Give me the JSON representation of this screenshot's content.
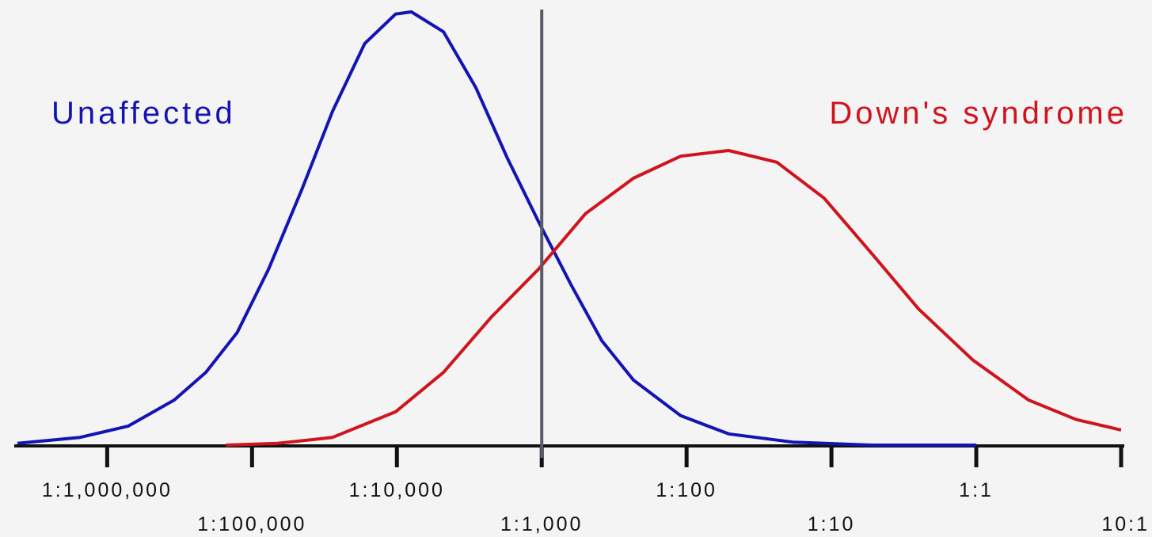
{
  "chart_data": {
    "type": "line",
    "log_x": true,
    "xlim": [
      2.4e-07,
      10
    ],
    "ylim": [
      0,
      1
    ],
    "xticks": [
      {
        "value": 1e-06,
        "label": "1:1,000,000"
      },
      {
        "value": 1e-05,
        "label": "1:100,000"
      },
      {
        "value": 0.0001,
        "label": "1:10,000"
      },
      {
        "value": 0.001,
        "label": "1:1,000"
      },
      {
        "value": 0.01,
        "label": "1:100"
      },
      {
        "value": 0.1,
        "label": "1:10"
      },
      {
        "value": 1,
        "label": "1:1"
      },
      {
        "value": 10,
        "label": "10:1"
      }
    ],
    "cutoff": 0.001,
    "cutoff_color": "#585c68",
    "series": [
      {
        "name": "Unaffected",
        "color": "#1414b4",
        "x": [
          2.4e-07,
          6.5e-07,
          1.4e-06,
          2.9e-06,
          4.8e-06,
          7.9e-06,
          1.3e-05,
          2.2e-05,
          3.6e-05,
          6e-05,
          9.8e-05,
          0.000126,
          0.00021,
          0.00035,
          0.00058,
          0.00095,
          0.0016,
          0.0026,
          0.0043,
          0.0091,
          0.0195,
          0.054,
          0.19,
          1
        ],
        "values": [
          0.004,
          0.018,
          0.044,
          0.104,
          0.168,
          0.26,
          0.406,
          0.589,
          0.771,
          0.927,
          0.995,
          1.0,
          0.954,
          0.826,
          0.662,
          0.516,
          0.369,
          0.241,
          0.15,
          0.068,
          0.026,
          0.007,
          0,
          0
        ]
      },
      {
        "name": "Down's syndrome",
        "color": "#d0141e",
        "x": [
          6.6e-06,
          1.5e-05,
          3.6e-05,
          9.8e-05,
          0.00021,
          0.00045,
          0.00095,
          0.002,
          0.0043,
          0.0091,
          0.0195,
          0.042,
          0.089,
          0.19,
          0.4,
          0.95,
          2.3,
          4.9,
          10
        ],
        "values": [
          0,
          0.004,
          0.018,
          0.077,
          0.168,
          0.296,
          0.406,
          0.534,
          0.616,
          0.667,
          0.68,
          0.653,
          0.57,
          0.442,
          0.314,
          0.196,
          0.104,
          0.059,
          0.035
        ]
      }
    ]
  }
}
